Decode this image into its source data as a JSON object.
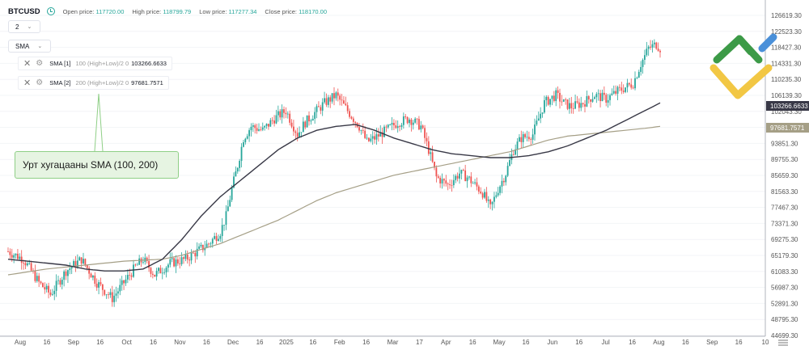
{
  "header": {
    "symbol": "BTCUSD",
    "open_label": "Open price:",
    "open_value": "117720.00",
    "high_label": "High price:",
    "high_value": "118799.79",
    "low_label": "Low price:",
    "low_value": "117277.34",
    "close_label": "Close price:",
    "close_value": "118170.00"
  },
  "controls": {
    "interval_value": "2",
    "indicator_select": "SMA"
  },
  "indicators": [
    {
      "name": "SMA [1]",
      "params": "100 (High+Low)/2 0",
      "value": "103266.6633",
      "color": "#383846"
    },
    {
      "name": "SMA [2]",
      "params": "200 (High+Low)/2 0",
      "value": "97681.7571",
      "color": "#a59f86"
    }
  ],
  "callout": {
    "text": "Урт хугацааны SMA (100, 200)"
  },
  "colors": {
    "up": "#26a69a",
    "down": "#ef5350",
    "sma1": "#383846",
    "sma2": "#a59f86",
    "callout_bg": "#e6f4e2",
    "callout_border": "#8fcf86"
  },
  "chart_data": {
    "type": "candlestick",
    "y_ticks": [
      "126619.30",
      "122523.30",
      "118427.30",
      "114331.30",
      "110235.30",
      "106139.30",
      "102043.30",
      "97947.30",
      "93851.30",
      "89755.30",
      "85659.30",
      "81563.30",
      "77467.30",
      "73371.30",
      "69275.30",
      "65179.30",
      "61083.30",
      "56987.30",
      "52891.30",
      "48795.30",
      "44699.30"
    ],
    "x_ticks": [
      "Aug",
      "16",
      "Sep",
      "16",
      "Oct",
      "16",
      "Nov",
      "16",
      "Dec",
      "16",
      "2025",
      "16",
      "Feb",
      "16",
      "Mar",
      "17",
      "Apr",
      "16",
      "May",
      "16",
      "Jun",
      "16",
      "Jul",
      "16",
      "Aug",
      "16",
      "Sep",
      "16",
      "10"
    ],
    "ylim": [
      44699.3,
      126619.3
    ],
    "sma1_label": "103266.6633",
    "sma2_label": "97681.7571",
    "price_path": [
      [
        0,
        66000
      ],
      [
        8,
        64000
      ],
      [
        16,
        58000
      ],
      [
        22,
        55000
      ],
      [
        30,
        61000
      ],
      [
        38,
        64000
      ],
      [
        46,
        58000
      ],
      [
        54,
        54000
      ],
      [
        60,
        58000
      ],
      [
        66,
        62000
      ],
      [
        70,
        64000
      ],
      [
        76,
        60000
      ],
      [
        84,
        63000
      ],
      [
        92,
        64000
      ],
      [
        98,
        66000
      ],
      [
        104,
        68000
      ],
      [
        110,
        71000
      ],
      [
        113,
        75000
      ],
      [
        116,
        82000
      ],
      [
        119,
        88000
      ],
      [
        122,
        95000
      ],
      [
        126,
        98000
      ],
      [
        132,
        97000
      ],
      [
        138,
        100000
      ],
      [
        144,
        102000
      ],
      [
        150,
        96000
      ],
      [
        154,
        99000
      ],
      [
        158,
        101000
      ],
      [
        164,
        104000
      ],
      [
        170,
        106000
      ],
      [
        176,
        102000
      ],
      [
        182,
        98000
      ],
      [
        186,
        94000
      ],
      [
        190,
        95000
      ],
      [
        196,
        97000
      ],
      [
        202,
        99000
      ],
      [
        208,
        100000
      ],
      [
        214,
        98000
      ],
      [
        218,
        92000
      ],
      [
        222,
        85000
      ],
      [
        228,
        83000
      ],
      [
        234,
        86000
      ],
      [
        238,
        85000
      ],
      [
        242,
        83000
      ],
      [
        246,
        81000
      ],
      [
        250,
        77000
      ],
      [
        254,
        82000
      ],
      [
        258,
        86000
      ],
      [
        262,
        92000
      ],
      [
        266,
        95000
      ],
      [
        272,
        96000
      ],
      [
        278,
        104000
      ],
      [
        284,
        106000
      ],
      [
        288,
        104000
      ],
      [
        292,
        103000
      ],
      [
        298,
        104000
      ],
      [
        304,
        106000
      ],
      [
        310,
        105000
      ],
      [
        316,
        107000
      ],
      [
        320,
        108000
      ],
      [
        324,
        109000
      ],
      [
        328,
        114000
      ],
      [
        332,
        118000
      ],
      [
        336,
        119000
      ],
      [
        338,
        118000
      ]
    ],
    "sma1_path": [
      [
        0,
        64000
      ],
      [
        10,
        63500
      ],
      [
        20,
        63000
      ],
      [
        30,
        62500
      ],
      [
        40,
        61500
      ],
      [
        50,
        61000
      ],
      [
        60,
        61000
      ],
      [
        70,
        61500
      ],
      [
        80,
        64000
      ],
      [
        90,
        69000
      ],
      [
        100,
        75000
      ],
      [
        110,
        80000
      ],
      [
        120,
        84000
      ],
      [
        130,
        88000
      ],
      [
        140,
        92000
      ],
      [
        150,
        95000
      ],
      [
        160,
        97000
      ],
      [
        170,
        98000
      ],
      [
        180,
        98500
      ],
      [
        190,
        97000
      ],
      [
        200,
        95000
      ],
      [
        210,
        93500
      ],
      [
        220,
        92000
      ],
      [
        230,
        91000
      ],
      [
        240,
        90500
      ],
      [
        250,
        90000
      ],
      [
        260,
        90000
      ],
      [
        270,
        90500
      ],
      [
        280,
        91500
      ],
      [
        290,
        93000
      ],
      [
        300,
        95000
      ],
      [
        310,
        97000
      ],
      [
        320,
        99500
      ],
      [
        330,
        102000
      ],
      [
        338,
        104000
      ]
    ],
    "sma2_path": [
      [
        0,
        60000
      ],
      [
        20,
        61500
      ],
      [
        40,
        62500
      ],
      [
        60,
        63500
      ],
      [
        80,
        64000
      ],
      [
        90,
        65000
      ],
      [
        100,
        66500
      ],
      [
        110,
        68000
      ],
      [
        120,
        70000
      ],
      [
        130,
        72000
      ],
      [
        140,
        74000
      ],
      [
        150,
        76500
      ],
      [
        160,
        79000
      ],
      [
        170,
        81000
      ],
      [
        180,
        82500
      ],
      [
        190,
        84000
      ],
      [
        200,
        85500
      ],
      [
        210,
        86500
      ],
      [
        220,
        87500
      ],
      [
        230,
        88500
      ],
      [
        240,
        89500
      ],
      [
        250,
        90500
      ],
      [
        260,
        91500
      ],
      [
        270,
        93000
      ],
      [
        280,
        94500
      ],
      [
        290,
        95500
      ],
      [
        300,
        96000
      ],
      [
        310,
        96500
      ],
      [
        320,
        97000
      ],
      [
        330,
        97500
      ],
      [
        338,
        98000
      ]
    ]
  }
}
